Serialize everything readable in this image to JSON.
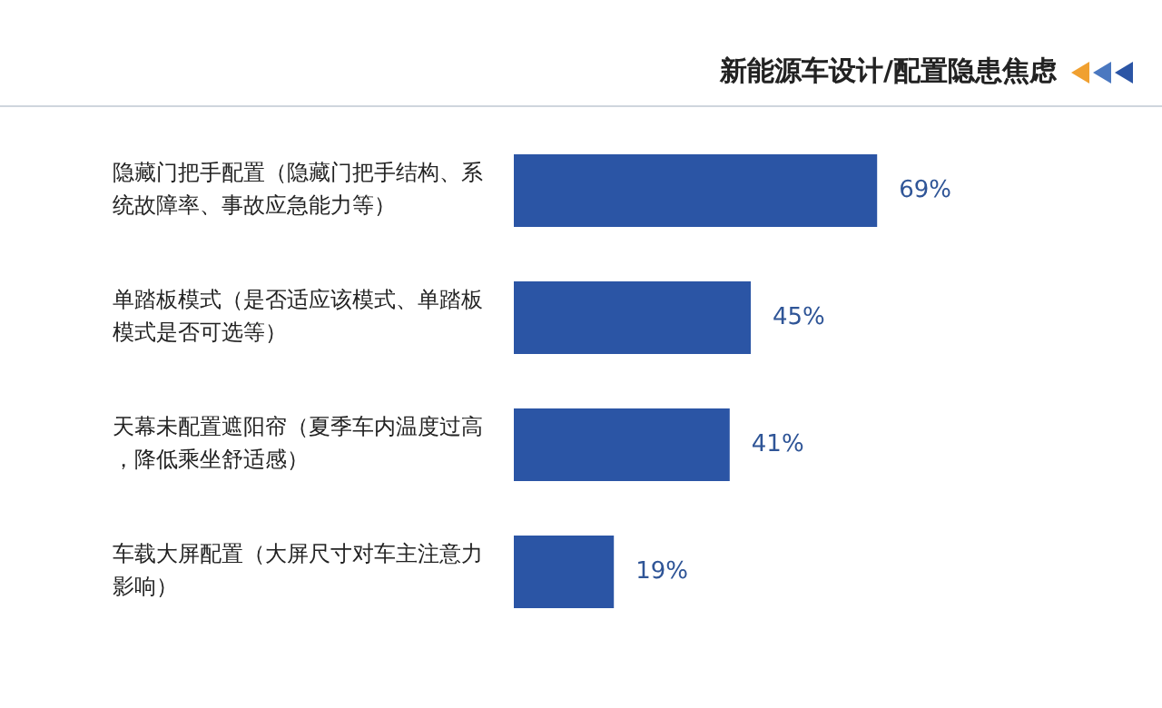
{
  "chart_data": {
    "type": "bar",
    "orientation": "horizontal",
    "title": "新能源车设计/配置隐患焦虑",
    "categories": [
      "隐藏门把手配置（隐藏门把手结构、系统故障率、事故应急能力等）",
      "单踏板模式（是否适应该模式、单踏板模式是否可选等）",
      "天幕未配置遮阳帘（夏季车内温度过高，降低乘坐舒适感）",
      "车载大屏配置（大屏尺寸对车主注意力影响）"
    ],
    "values": [
      69,
      45,
      41,
      19
    ],
    "value_labels": [
      "69%",
      "45%",
      "41%",
      "19%"
    ],
    "color": "#2b55a5",
    "tick_labels": "y",
    "grid": false,
    "legend": false
  }
}
